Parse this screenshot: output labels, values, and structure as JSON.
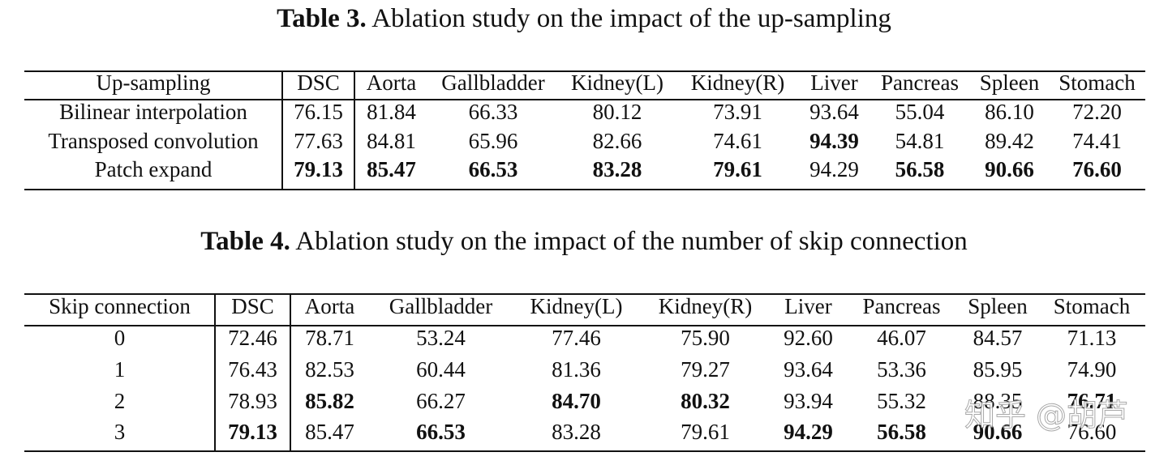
{
  "tables": [
    {
      "label": "Table 3.",
      "caption": "Ablation study on the impact of the up-sampling",
      "header": [
        "Up-sampling",
        "DSC",
        "Aorta",
        "Gallbladder",
        "Kidney(L)",
        "Kidney(R)",
        "Liver",
        "Pancreas",
        "Spleen",
        "Stomach"
      ],
      "rows": [
        [
          "Bilinear interpolation",
          "76.15",
          "81.84",
          "66.33",
          "80.12",
          "73.91",
          "93.64",
          "55.04",
          "86.10",
          "72.20"
        ],
        [
          "Transposed convolution",
          "77.63",
          "84.81",
          "65.96",
          "82.66",
          "74.61",
          {
            "text": "94.39",
            "bold": true
          },
          "54.81",
          "89.42",
          "74.41"
        ],
        [
          "Patch expand",
          {
            "text": "79.13",
            "bold": true
          },
          {
            "text": "85.47",
            "bold": true
          },
          {
            "text": "66.53",
            "bold": true
          },
          {
            "text": "83.28",
            "bold": true
          },
          {
            "text": "79.61",
            "bold": true
          },
          "94.29",
          {
            "text": "56.58",
            "bold": true
          },
          {
            "text": "90.66",
            "bold": true
          },
          {
            "text": "76.60",
            "bold": true
          }
        ]
      ]
    },
    {
      "label": "Table 4.",
      "caption": "Ablation study on the impact of the number of skip connection",
      "header": [
        "Skip connection",
        "DSC",
        "Aorta",
        "Gallbladder",
        "Kidney(L)",
        "Kidney(R)",
        "Liver",
        "Pancreas",
        "Spleen",
        "Stomach"
      ],
      "rows": [
        [
          "0",
          "72.46",
          "78.71",
          "53.24",
          "77.46",
          "75.90",
          "92.60",
          "46.07",
          "84.57",
          "71.13"
        ],
        [
          "1",
          "76.43",
          "82.53",
          "60.44",
          "81.36",
          "79.27",
          "93.64",
          "53.36",
          "85.95",
          "74.90"
        ],
        [
          "2",
          "78.93",
          {
            "text": "85.82",
            "bold": true
          },
          "66.27",
          {
            "text": "84.70",
            "bold": true
          },
          {
            "text": "80.32",
            "bold": true
          },
          "93.94",
          "55.32",
          "88.35",
          {
            "text": "76.71",
            "bold": true
          }
        ],
        [
          "3",
          {
            "text": "79.13",
            "bold": true
          },
          "85.47",
          {
            "text": "66.53",
            "bold": true
          },
          "83.28",
          "79.61",
          {
            "text": "94.29",
            "bold": true
          },
          {
            "text": "56.58",
            "bold": true
          },
          {
            "text": "90.66",
            "bold": true
          },
          "76.60"
        ]
      ]
    }
  ],
  "watermark": "知乎 @胡芦"
}
